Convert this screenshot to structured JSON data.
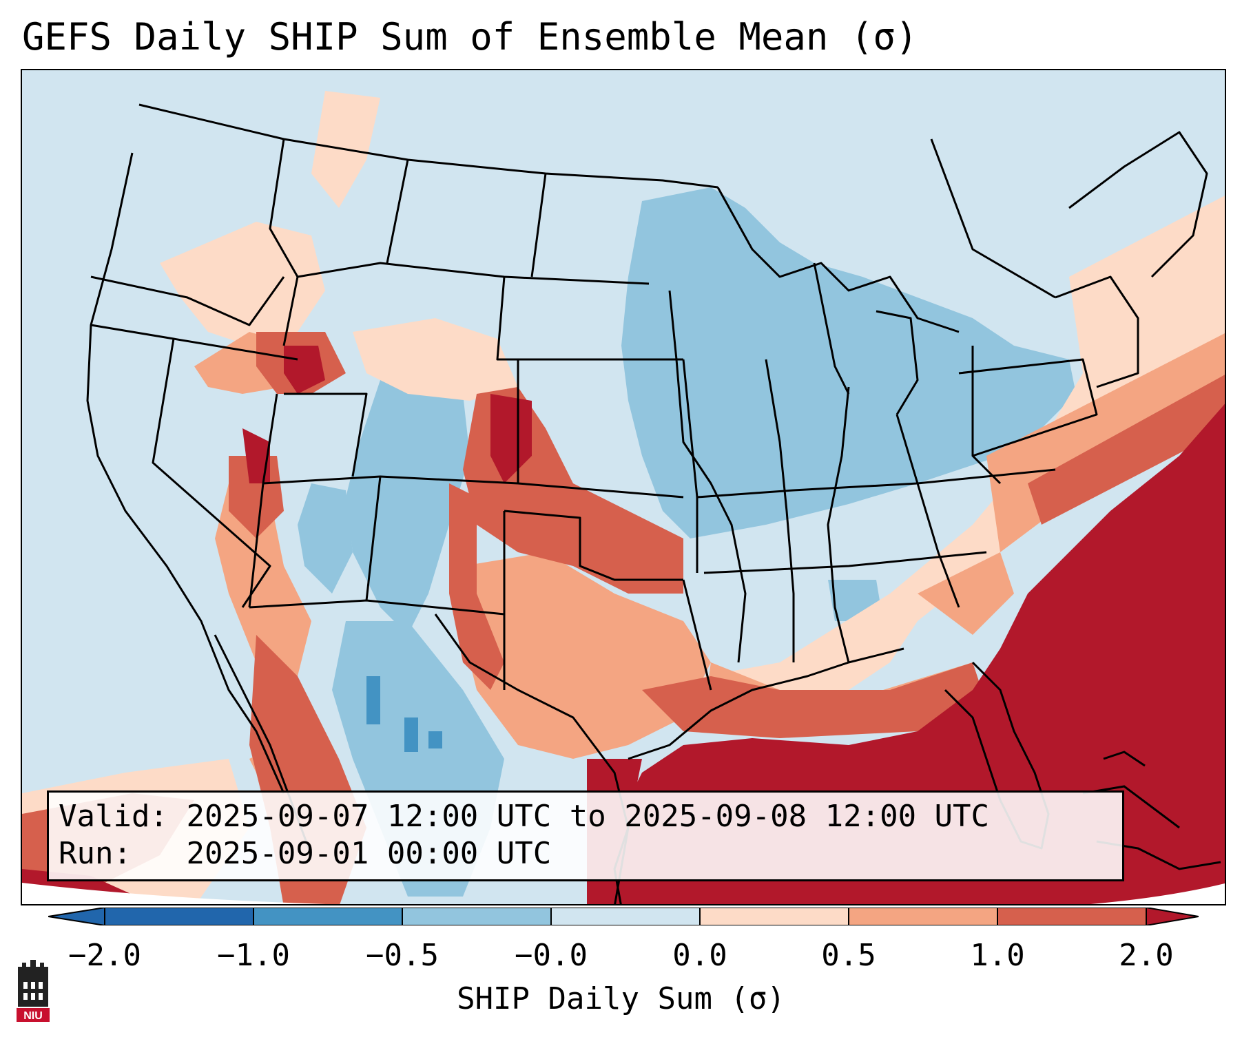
{
  "title": "GEFS Daily SHIP Sum of Ensemble Mean (σ)",
  "info": {
    "valid_label": "Valid:",
    "valid_value": "2025-09-07 12:00 UTC to 2025-09-08 12:00 UTC",
    "run_label": "Run:",
    "run_value": "2025-09-01 00:00 UTC"
  },
  "colorbar": {
    "label": "SHIP Daily Sum (σ)",
    "ticks": [
      "−2.0",
      "−1.0",
      "−0.5",
      "−0.0",
      "0.0",
      "0.5",
      "1.0",
      "2.0"
    ],
    "colors": [
      "#2166ac",
      "#4393c3",
      "#92c5de",
      "#d1e5f0",
      "#ffffff",
      "#fddbc7",
      "#f4a582",
      "#d6604d",
      "#b2182b"
    ],
    "extend": "both"
  },
  "logo": {
    "text": "NIU",
    "color": "#c8102e"
  }
}
